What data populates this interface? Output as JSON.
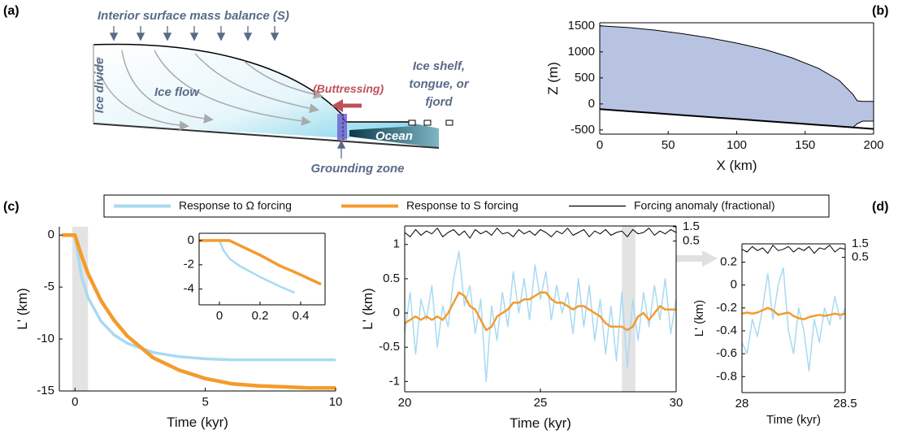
{
  "panel_labels": [
    "(a)",
    "(b)",
    "(c)",
    "(d)"
  ],
  "diagram": {
    "smb": "Interior surface mass balance (S)",
    "divide": "Ice divide",
    "flow": "Ice flow",
    "buttressing": "(Buttressing)",
    "shelf": [
      "Ice shelf,",
      "tongue, or",
      "fjord"
    ],
    "ocean": "Ocean",
    "grounding": "Grounding zone"
  },
  "chart_data": [
    {
      "type": "area",
      "xlabel": "X (km)",
      "ylabel": "Z (m)",
      "x": [
        0,
        20,
        40,
        60,
        80,
        100,
        120,
        140,
        160,
        175,
        185,
        188,
        192,
        200
      ],
      "series": [
        {
          "color": "#b7c3e1",
          "values": [
            1500,
            1470,
            1420,
            1350,
            1270,
            1170,
            1050,
            890,
            680,
            450,
            180,
            60,
            50,
            50
          ]
        },
        {
          "color": "#b7c3e1",
          "values": [
            -100,
            -138,
            -176,
            -214,
            -252,
            -290,
            -328,
            -366,
            -404,
            -432,
            -451,
            -380,
            -330,
            -330
          ]
        },
        {
          "color": "#000000",
          "values": [
            -100,
            -138,
            -176,
            -214,
            -252,
            -290,
            -328,
            -366,
            -404,
            -432,
            -451,
            -457,
            -465,
            -480
          ]
        }
      ],
      "xlim": [
        0,
        200
      ],
      "ylim": [
        -580,
        1560
      ],
      "xticks": [
        0,
        50,
        100,
        150,
        200
      ],
      "yticks": [
        1500,
        1000,
        500,
        0,
        -500
      ]
    },
    {
      "type": "line",
      "xlabel": "Time (kyr)",
      "ylabel": "L' (km)",
      "x": [
        -0.5,
        0,
        0.25,
        0.5,
        1,
        1.5,
        2,
        3,
        4,
        5,
        6,
        7,
        8,
        9,
        10
      ],
      "series": [
        {
          "color": "#a8daf2",
          "values": [
            0,
            0,
            -4,
            -6,
            -8.3,
            -9.6,
            -10.4,
            -11.3,
            -11.7,
            -11.9,
            -12,
            -12,
            -12,
            -12,
            -12
          ]
        },
        {
          "color": "#f49b2c",
          "values": [
            0,
            0,
            -2,
            -3.7,
            -6.3,
            -8.2,
            -9.7,
            -11.8,
            -13,
            -13.8,
            -14.3,
            -14.5,
            -14.6,
            -14.7,
            -14.7
          ]
        }
      ],
      "highlight": [
        -0.1,
        0.5
      ],
      "xlim": [
        -0.6,
        10
      ],
      "ylim": [
        -15,
        0.8
      ],
      "xticks": [
        0,
        5,
        10
      ],
      "yticks": [
        0,
        -5,
        -10,
        -15
      ]
    },
    {
      "type": "line",
      "x": [
        -0.1,
        0,
        0.02,
        0.05,
        0.1,
        0.2,
        0.3,
        0.37,
        0.5
      ],
      "series": [
        {
          "color": "#a8daf2",
          "values": [
            0,
            0,
            -0.8,
            -1.5,
            -2.1,
            -3,
            -3.8,
            -4.3,
            null
          ]
        },
        {
          "color": "#f49b2c",
          "values": [
            0,
            0,
            0,
            0,
            -0.4,
            -1.2,
            -2.1,
            -2.6,
            -3.6
          ]
        }
      ],
      "xlim": [
        -0.1,
        0.52
      ],
      "ylim": [
        -5.3,
        0.6
      ],
      "xticks": [
        0,
        0.2,
        0.4
      ],
      "yticks": [
        0,
        -2,
        -4
      ]
    },
    {
      "type": "line",
      "xlabel": "Time (kyr)",
      "ylabel": "L' (km)",
      "x": [
        20,
        20.2,
        20.4,
        20.6,
        20.8,
        21,
        21.2,
        21.4,
        21.6,
        21.8,
        22,
        22.2,
        22.4,
        22.6,
        22.8,
        23,
        23.2,
        23.4,
        23.6,
        23.8,
        24,
        24.2,
        24.4,
        24.6,
        24.8,
        25,
        25.2,
        25.4,
        25.6,
        25.8,
        26,
        26.2,
        26.4,
        26.6,
        26.8,
        27,
        27.2,
        27.4,
        27.6,
        27.8,
        28,
        28.2,
        28.4,
        28.6,
        28.8,
        29,
        29.2,
        29.4,
        29.6,
        29.8,
        30
      ],
      "series": [
        {
          "name": "Response to Ω forcing",
          "color": "#a8daf2",
          "values": [
            -0.3,
            0.3,
            -0.6,
            0.2,
            -0.1,
            0.4,
            -0.5,
            0.1,
            -0.2,
            0.5,
            0.9,
            0.1,
            0.4,
            -0.3,
            0.2,
            -1.0,
            0.1,
            -0.4,
            0.3,
            -0.2,
            0.6,
            0.0,
            0.5,
            -0.1,
            0.7,
            0.2,
            0.6,
            -0.1,
            0.4,
            0.0,
            0.3,
            -0.3,
            0.5,
            -0.2,
            0.4,
            -0.4,
            0.2,
            -0.6,
            0.1,
            -0.7,
            0.3,
            -0.8,
            0.2,
            -0.4,
            0.3,
            -0.2,
            0.4,
            -0.1,
            0.5,
            -0.3,
            0.2
          ]
        },
        {
          "name": "Response to S forcing",
          "color": "#f49b2c",
          "values": [
            -0.15,
            -0.1,
            -0.05,
            -0.1,
            -0.05,
            -0.1,
            -0.05,
            -0.1,
            0.0,
            0.15,
            0.3,
            0.25,
            0.1,
            0.05,
            -0.1,
            -0.25,
            -0.2,
            -0.05,
            0.0,
            0.05,
            0.15,
            0.15,
            0.2,
            0.2,
            0.25,
            0.3,
            0.3,
            0.2,
            0.15,
            0.15,
            0.1,
            0.05,
            0.1,
            0.1,
            0.05,
            0.0,
            -0.05,
            -0.15,
            -0.2,
            -0.2,
            -0.2,
            -0.25,
            -0.2,
            -0.05,
            0.0,
            -0.1,
            0.0,
            0.1,
            0.05,
            0.05,
            0.05
          ]
        },
        {
          "name": "Forcing anomaly (fractional)",
          "color": "#000000",
          "axis": "y2",
          "values": [
            1.1,
            0.8,
            1.3,
            0.9,
            1.2,
            1.0,
            1.4,
            0.8,
            1.1,
            1.3,
            0.9,
            1.2,
            0.7,
            1.3,
            1.0,
            1.2,
            0.9,
            1.4,
            1.0,
            1.1,
            0.8,
            1.3,
            1.0,
            1.2,
            0.9,
            1.3,
            1.1,
            0.8,
            1.2,
            1.0,
            1.4,
            0.9,
            1.1,
            1.3,
            0.8,
            1.2,
            1.0,
            1.3,
            0.9,
            1.1,
            1.2,
            0.8,
            1.3,
            1.0,
            1.1,
            1.4,
            0.9,
            1.2,
            1.0,
            1.3,
            1.1
          ]
        }
      ],
      "highlight": [
        28,
        28.5
      ],
      "xlim": [
        20,
        30
      ],
      "ylim": [
        -1.15,
        1.27
      ],
      "y2lim": [
        -9.98,
        1.55
      ],
      "xticks": [
        20,
        25,
        30
      ],
      "yticks": [
        1,
        0.5,
        0,
        -0.5,
        -1
      ],
      "y2ticks": [
        1.5,
        0.5
      ]
    },
    {
      "type": "line",
      "xlabel": "Time (kyr)",
      "ylabel": "L' (km)",
      "x": [
        28,
        28.025,
        28.05,
        28.075,
        28.1,
        28.125,
        28.15,
        28.175,
        28.2,
        28.225,
        28.25,
        28.275,
        28.3,
        28.325,
        28.35,
        28.375,
        28.4,
        28.425,
        28.45,
        28.475,
        28.5
      ],
      "series": [
        {
          "color": "#a8daf2",
          "values": [
            -0.5,
            -0.6,
            -0.3,
            -0.45,
            -0.2,
            0.1,
            -0.3,
            0.0,
            0.15,
            -0.4,
            -0.6,
            -0.2,
            -0.4,
            -0.75,
            -0.3,
            -0.5,
            -0.2,
            -0.35,
            -0.1,
            -0.3,
            -0.2
          ]
        },
        {
          "color": "#f49b2c",
          "values": [
            -0.25,
            -0.24,
            -0.25,
            -0.24,
            -0.22,
            -0.2,
            -0.22,
            -0.26,
            -0.25,
            -0.24,
            -0.27,
            -0.29,
            -0.3,
            -0.28,
            -0.27,
            -0.26,
            -0.27,
            -0.26,
            -0.25,
            -0.26,
            -0.25
          ]
        },
        {
          "color": "#000000",
          "axis": "y2",
          "values": [
            1.1,
            0.9,
            1.3,
            1.0,
            1.2,
            0.8,
            1.4,
            1.0,
            1.1,
            1.3,
            0.9,
            1.2,
            1.0,
            1.3,
            0.8,
            1.2,
            1.1,
            1.4,
            0.9,
            1.2,
            1.1
          ]
        }
      ],
      "xlim": [
        28,
        28.5
      ],
      "ylim": [
        -0.94,
        0.36
      ],
      "y2lim": [
        -9.5,
        1.5
      ],
      "xticks": [
        28,
        28.5
      ],
      "yticks": [
        0.2,
        0,
        -0.2,
        -0.4,
        -0.6,
        -0.8
      ],
      "y2ticks": [
        1.5,
        0.5
      ]
    }
  ]
}
